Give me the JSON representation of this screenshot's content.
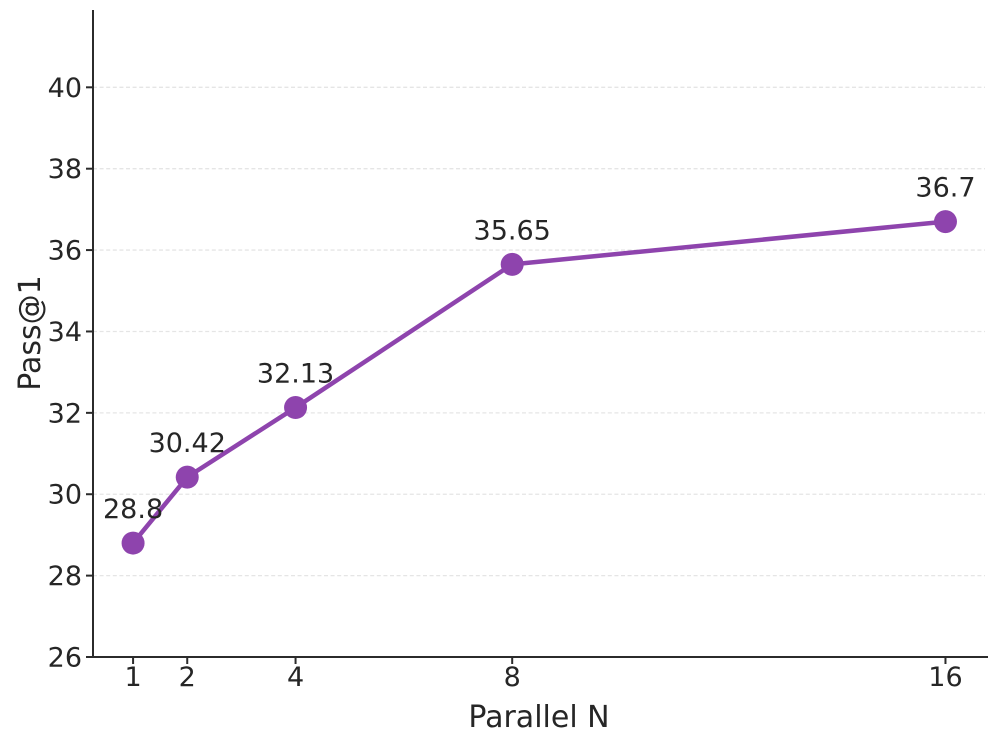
{
  "figure": {
    "background_color": "#ffffff",
    "text_color": "#262626",
    "grid_color": "#e5e5e5",
    "spine_color": "#2b2b2b",
    "accent_color": "#8e44ad"
  },
  "chart_data": {
    "type": "line",
    "title": "",
    "xlabel": "Parallel N",
    "ylabel": "Pass@1",
    "x": [
      1,
      2,
      4,
      8,
      16
    ],
    "values": [
      28.8,
      30.42,
      32.13,
      35.65,
      36.7
    ],
    "point_labels": [
      "28.8",
      "30.42",
      "32.13",
      "35.65",
      "36.7"
    ],
    "xticks": [
      1,
      2,
      4,
      8,
      16
    ],
    "xtick_labels": [
      "1",
      "2",
      "4",
      "8",
      "16"
    ],
    "yticks": [
      26,
      28,
      30,
      32,
      34,
      36,
      38,
      40
    ],
    "ytick_labels": [
      "26",
      "28",
      "30",
      "32",
      "34",
      "36",
      "38",
      "40"
    ],
    "xlim": [
      0.26,
      16.73
    ],
    "ylim": [
      26,
      41.9
    ],
    "x_scale": "linear",
    "grid": "horizontal-dashed",
    "legend": "none",
    "line_color": "#8e44ad",
    "marker": "circle",
    "marker_color": "#8e44ad"
  }
}
